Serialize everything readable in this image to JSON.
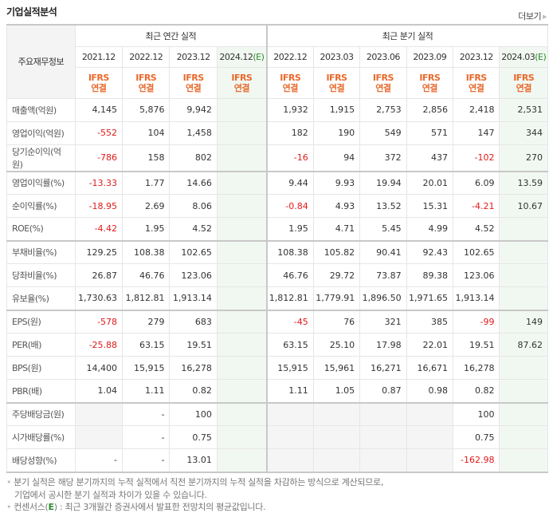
{
  "header": {
    "title": "기업실적분석",
    "more_label": "더보기"
  },
  "table": {
    "label_header": "주요재무정보",
    "annual_group": "최근 연간 실적",
    "quarter_group": "최근 분기 실적",
    "annual_periods": [
      "2021.12",
      "2022.12",
      "2023.12",
      "2024.12"
    ],
    "quarter_periods": [
      "2022.12",
      "2023.03",
      "2023.06",
      "2023.09",
      "2023.12",
      "2024.03"
    ],
    "estimate_mark": "(E)",
    "basis_line1": "IFRS",
    "basis_line2": "연결",
    "rows": [
      {
        "label": "매출액(억원)",
        "annual": [
          "4,145",
          "5,876",
          "9,942",
          ""
        ],
        "quarter": [
          "1,932",
          "1,915",
          "2,753",
          "2,856",
          "2,418",
          "2,531"
        ]
      },
      {
        "label": "영업이익(억원)",
        "annual": [
          "-552",
          "104",
          "1,458",
          ""
        ],
        "quarter": [
          "182",
          "190",
          "549",
          "571",
          "147",
          "344"
        ]
      },
      {
        "label": "당기순이익(억원)",
        "annual": [
          "-786",
          "158",
          "802",
          ""
        ],
        "quarter": [
          "-16",
          "94",
          "372",
          "437",
          "-102",
          "270"
        ]
      },
      {
        "label": "영업이익률(%)",
        "annual": [
          "-13.33",
          "1.77",
          "14.66",
          ""
        ],
        "quarter": [
          "9.44",
          "9.93",
          "19.94",
          "20.01",
          "6.09",
          "13.59"
        ]
      },
      {
        "label": "순이익률(%)",
        "annual": [
          "-18.95",
          "2.69",
          "8.06",
          ""
        ],
        "quarter": [
          "-0.84",
          "4.93",
          "13.52",
          "15.31",
          "-4.21",
          "10.67"
        ]
      },
      {
        "label": "ROE(%)",
        "annual": [
          "-4.42",
          "1.95",
          "4.52",
          ""
        ],
        "quarter": [
          "1.95",
          "4.71",
          "5.45",
          "4.99",
          "4.52",
          ""
        ]
      },
      {
        "label": "부채비율(%)",
        "annual": [
          "129.25",
          "108.38",
          "102.65",
          ""
        ],
        "quarter": [
          "108.38",
          "105.82",
          "90.41",
          "92.43",
          "102.65",
          ""
        ]
      },
      {
        "label": "당좌비율(%)",
        "annual": [
          "26.87",
          "46.76",
          "123.06",
          ""
        ],
        "quarter": [
          "46.76",
          "29.72",
          "73.87",
          "89.38",
          "123.06",
          ""
        ]
      },
      {
        "label": "유보율(%)",
        "annual": [
          "1,730.63",
          "1,812.81",
          "1,913.14",
          ""
        ],
        "quarter": [
          "1,812.81",
          "1,779.91",
          "1,896.50",
          "1,971.65",
          "1,913.14",
          ""
        ]
      },
      {
        "label": "EPS(원)",
        "annual": [
          "-578",
          "279",
          "683",
          ""
        ],
        "quarter": [
          "-45",
          "76",
          "321",
          "385",
          "-99",
          "149"
        ]
      },
      {
        "label": "PER(배)",
        "annual": [
          "-25.88",
          "63.15",
          "19.51",
          ""
        ],
        "quarter": [
          "63.15",
          "25.10",
          "17.98",
          "22.01",
          "19.51",
          "87.62"
        ]
      },
      {
        "label": "BPS(원)",
        "annual": [
          "14,400",
          "15,915",
          "16,278",
          ""
        ],
        "quarter": [
          "15,915",
          "15,961",
          "16,271",
          "16,671",
          "16,278",
          ""
        ]
      },
      {
        "label": "PBR(배)",
        "annual": [
          "1.04",
          "1.11",
          "0.82",
          ""
        ],
        "quarter": [
          "1.11",
          "1.05",
          "0.87",
          "0.98",
          "0.82",
          ""
        ]
      },
      {
        "label": "주당배당금(원)",
        "annual": [
          "",
          "-",
          "100",
          ""
        ],
        "quarter": [
          "",
          "",
          "",
          "",
          "100",
          ""
        ]
      },
      {
        "label": "시가배당률(%)",
        "annual": [
          "",
          "-",
          "0.75",
          ""
        ],
        "quarter": [
          "",
          "",
          "",
          "",
          "0.75",
          ""
        ]
      },
      {
        "label": "배당성향(%)",
        "annual": [
          "-",
          "-",
          "13.01",
          ""
        ],
        "quarter": [
          "",
          "",
          "",
          "",
          "-162.98",
          ""
        ]
      }
    ]
  },
  "notes": {
    "line1": "분기 실적은 해당 분기까지의 누적 실적에서 직전 분기까지의 누적 실적을 차감하는 방식으로 계산되므로,",
    "line2": "기업에서 공시한 분기 실적과 차이가 있을 수 있습니다.",
    "line3_prefix": "컨센서스(",
    "line3_e": "E",
    "line3_suffix": ") : 최근 3개월간 증권사에서 발표한 전망치의 평균값입니다."
  },
  "colors": {
    "negative": "#e01a1a",
    "basis": "#e8692b",
    "estimate_mark": "#2c8a2c",
    "estimate_bg": "#f1f8f1"
  }
}
